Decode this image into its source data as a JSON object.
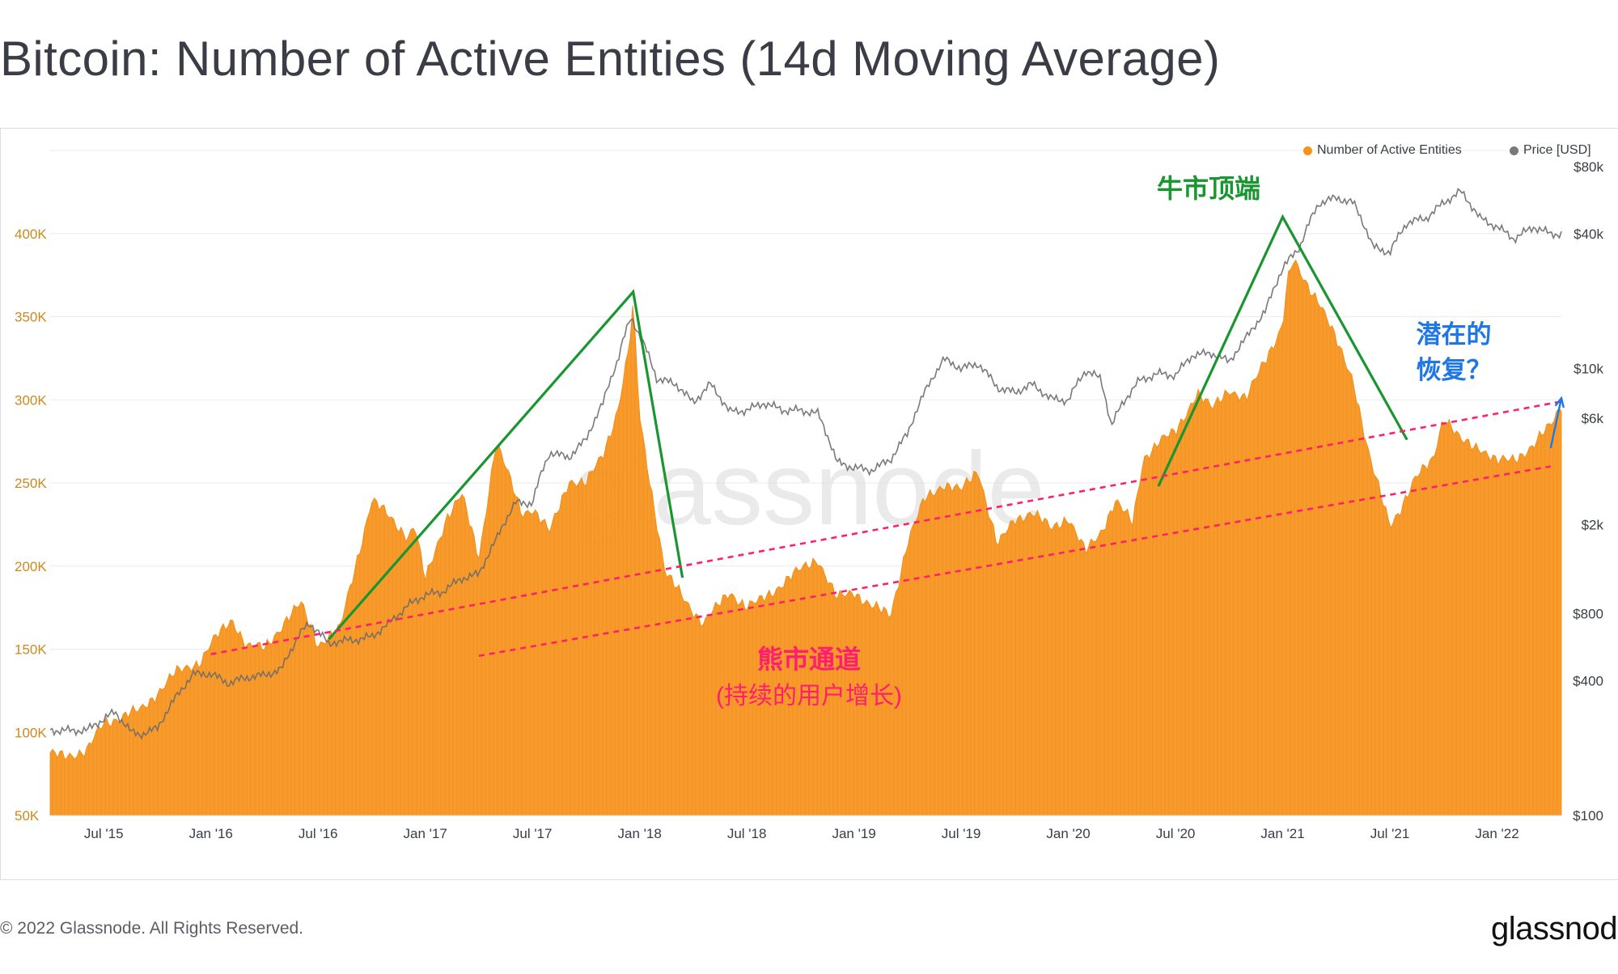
{
  "title": "Bitcoin: Number of Active Entities (14d Moving Average)",
  "legend": {
    "entities_label": "Number of Active Entities",
    "price_label": "Price [USD]"
  },
  "colors": {
    "entities": "#f7931a",
    "price": "#6b6b6b",
    "bull_line": "#1a9631",
    "bear_channel": "#ff1f6e",
    "recovery": "#1f77e6",
    "left_axis_text": "#c98a1f",
    "grid": "#ebebeb"
  },
  "watermark": "glassnode",
  "footer": {
    "copyright": "© 2022 Glassnode. All Rights Reserved.",
    "logo": "glassnode"
  },
  "annotations": {
    "bull_top": "牛市顶端",
    "bear_channel": "熊市通道",
    "bear_channel_sub": "(持续的用户增长)",
    "recovery_line1": "潜在的",
    "recovery_line2": "恢复？"
  },
  "chart_data": {
    "type": "area",
    "title": "Bitcoin: Number of Active Entities (14d Moving Average)",
    "x_range": [
      "2015-04",
      "2022-05"
    ],
    "x_ticks": [
      "Jul '15",
      "Jan '16",
      "Jul '16",
      "Jan '17",
      "Jul '17",
      "Jan '18",
      "Jul '18",
      "Jan '19",
      "Jul '19",
      "Jan '20",
      "Jul '20",
      "Jan '21",
      "Jul '21",
      "Jan '22"
    ],
    "y_left": {
      "label": "Number of Active Entities",
      "ylim": [
        50000,
        450000
      ],
      "ticks": [
        50000,
        100000,
        150000,
        200000,
        250000,
        300000,
        350000,
        400000
      ],
      "tick_labels": [
        "50K",
        "100K",
        "150K",
        "200K",
        "250K",
        "300K",
        "350K",
        "400K"
      ]
    },
    "y_right": {
      "label": "Price [USD]",
      "scale": "log",
      "ticks": [
        100,
        400,
        800,
        2000,
        6000,
        10000,
        40000,
        80000
      ],
      "tick_labels": [
        "$100",
        "$400",
        "$800",
        "$2k",
        "$6k",
        "$10k",
        "$40k",
        "$80k"
      ]
    },
    "series": [
      {
        "name": "Number of Active Entities",
        "axis": "left",
        "type": "area",
        "x": [
          2015.25,
          2015.42,
          2015.5,
          2015.67,
          2015.83,
          2015.95,
          2016.0,
          2016.1,
          2016.17,
          2016.25,
          2016.35,
          2016.42,
          2016.5,
          2016.55,
          2016.6,
          2016.75,
          2016.92,
          2016.95,
          2017.0,
          2017.1,
          2017.17,
          2017.25,
          2017.33,
          2017.4,
          2017.45,
          2017.5,
          2017.58,
          2017.67,
          2017.75,
          2017.83,
          2017.9,
          2017.95,
          2017.97,
          2018.0,
          2018.05,
          2018.12,
          2018.2,
          2018.3,
          2018.42,
          2018.5,
          2018.55,
          2018.67,
          2018.83,
          2018.92,
          2019.0,
          2019.08,
          2019.17,
          2019.25,
          2019.33,
          2019.42,
          2019.5,
          2019.58,
          2019.67,
          2019.75,
          2019.83,
          2019.92,
          2020.0,
          2020.08,
          2020.15,
          2020.22,
          2020.3,
          2020.35,
          2020.42,
          2020.5,
          2020.6,
          2020.67,
          2020.75,
          2020.83,
          2020.92,
          2021.0,
          2021.02,
          2021.05,
          2021.1,
          2021.17,
          2021.25,
          2021.33,
          2021.4,
          2021.42,
          2021.5,
          2021.55,
          2021.62,
          2021.7,
          2021.75,
          2021.83,
          2021.92,
          2022.0,
          2022.08,
          2022.17,
          2022.25,
          2022.3
        ],
        "values": [
          86000,
          88000,
          106000,
          113000,
          135000,
          143000,
          153000,
          168000,
          152000,
          150000,
          168000,
          177000,
          153000,
          158000,
          161000,
          240000,
          218000,
          225000,
          191000,
          230000,
          243000,
          205000,
          275000,
          250000,
          232000,
          235000,
          220000,
          252000,
          249000,
          268000,
          295000,
          330000,
          357000,
          290000,
          250000,
          195000,
          182000,
          165000,
          185000,
          175000,
          178000,
          190000,
          205000,
          180000,
          185000,
          176000,
          170000,
          215000,
          240000,
          250000,
          245000,
          258000,
          212000,
          228000,
          233000,
          222000,
          230000,
          208000,
          220000,
          240000,
          225000,
          265000,
          275000,
          280000,
          305000,
          294000,
          307000,
          300000,
          325000,
          345000,
          370000,
          383000,
          372000,
          360000,
          335000,
          312000,
          268000,
          258000,
          225000,
          235000,
          252000,
          265000,
          290000,
          275000,
          272000,
          262000,
          265000,
          272000,
          285000,
          298000
        ]
      },
      {
        "name": "Price [USD]",
        "axis": "right",
        "type": "line",
        "x": [
          2015.25,
          2015.42,
          2015.5,
          2015.55,
          2015.58,
          2015.63,
          2015.67,
          2015.75,
          2015.83,
          2015.92,
          2016.0,
          2016.08,
          2016.17,
          2016.25,
          2016.33,
          2016.42,
          2016.46,
          2016.5,
          2016.55,
          2016.58,
          2016.67,
          2016.75,
          2016.83,
          2016.92,
          2017.0,
          2017.08,
          2017.17,
          2017.25,
          2017.33,
          2017.42,
          2017.5,
          2017.58,
          2017.67,
          2017.75,
          2017.83,
          2017.9,
          2017.96,
          2018.0,
          2018.08,
          2018.17,
          2018.25,
          2018.33,
          2018.42,
          2018.5,
          2018.58,
          2018.67,
          2018.75,
          2018.83,
          2018.92,
          2019.0,
          2019.08,
          2019.17,
          2019.25,
          2019.33,
          2019.42,
          2019.5,
          2019.58,
          2019.67,
          2019.75,
          2019.83,
          2019.92,
          2020.0,
          2020.08,
          2020.15,
          2020.2,
          2020.25,
          2020.33,
          2020.42,
          2020.5,
          2020.58,
          2020.67,
          2020.75,
          2020.83,
          2020.92,
          2021.0,
          2021.08,
          2021.17,
          2021.25,
          2021.33,
          2021.42,
          2021.5,
          2021.58,
          2021.67,
          2021.75,
          2021.83,
          2021.92,
          2022.0,
          2022.08,
          2022.17,
          2022.25,
          2022.3
        ],
        "values": [
          240,
          240,
          270,
          290,
          270,
          235,
          230,
          245,
          330,
          430,
          430,
          390,
          415,
          425,
          450,
          660,
          720,
          670,
          580,
          600,
          610,
          630,
          720,
          870,
          970,
          1000,
          1150,
          1200,
          1700,
          2500,
          2500,
          4200,
          4000,
          4800,
          7000,
          11000,
          17000,
          14000,
          9000,
          8500,
          7000,
          8500,
          6400,
          6500,
          7000,
          6500,
          6500,
          6300,
          3800,
          3600,
          3500,
          3900,
          5100,
          7800,
          11000,
          10000,
          10500,
          8200,
          7800,
          8500,
          7300,
          7200,
          9800,
          9000,
          5500,
          6900,
          8800,
          9500,
          9300,
          11500,
          11700,
          10700,
          13700,
          18000,
          28000,
          35000,
          55000,
          58000,
          55000,
          35000,
          33000,
          45000,
          47000,
          55000,
          62000,
          47000,
          43000,
          38000,
          43000,
          40000,
          40000
        ]
      }
    ],
    "annotations": [
      {
        "type": "trend",
        "label": "bull_run_1",
        "points": [
          [
            2016.55,
            156000
          ],
          [
            2017.97,
            365000
          ],
          [
            2018.2,
            193000
          ]
        ]
      },
      {
        "type": "trend",
        "label": "bull_run_2",
        "points": [
          [
            2020.42,
            248000
          ],
          [
            2021.0,
            410000
          ],
          [
            2021.58,
            276000
          ]
        ]
      },
      {
        "type": "channel_line",
        "label": "bear_channel_upper",
        "points": [
          [
            2016.0,
            147000
          ],
          [
            2022.3,
            299000
          ]
        ]
      },
      {
        "type": "channel_line",
        "label": "bear_channel_lower",
        "points": [
          [
            2017.25,
            146000
          ],
          [
            2022.25,
            260000
          ]
        ]
      },
      {
        "type": "arrow",
        "label": "recovery",
        "points": [
          [
            2022.25,
            271000
          ],
          [
            2022.3,
            301000
          ]
        ]
      }
    ]
  }
}
